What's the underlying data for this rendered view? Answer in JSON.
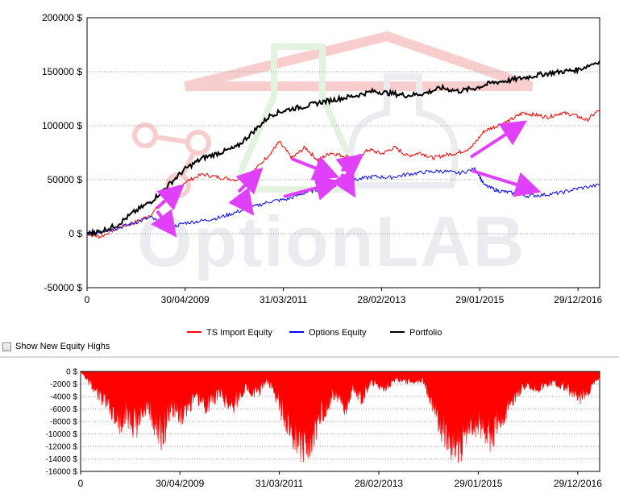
{
  "colors": {
    "ts_import": "#ff0000",
    "options": "#0000ff",
    "portfolio": "#000000",
    "drawdown": "#ff0000",
    "arrow": "#e040fb",
    "grid": "#a0a0a0",
    "watermark": "#f3a6a6",
    "watermark_gray": "#d9dde3",
    "watermark_green": "#cfe8c8"
  },
  "watermark": {
    "text": "OptionLAB"
  },
  "controls": {
    "show_new_equity_highs": {
      "label": "Show New Equity Highs",
      "checked": false
    }
  },
  "chart_data": [
    {
      "type": "line",
      "x_type": "date",
      "xlim": [
        "2007-06-01",
        "2017-06-01"
      ],
      "ylim": [
        -50000,
        200000
      ],
      "y_ticks": [
        {
          "value": -50000,
          "label": "-50000 $"
        },
        {
          "value": 0,
          "label": "0 $"
        },
        {
          "value": 50000,
          "label": "50000 $"
        },
        {
          "value": 100000,
          "label": "100000 $"
        },
        {
          "value": 150000,
          "label": "150000 $"
        },
        {
          "value": 200000,
          "label": "200000 $"
        }
      ],
      "x_ticks": [
        {
          "date": "2007-06-01",
          "label": "0"
        },
        {
          "date": "2009-04-30",
          "label": "30/04/2009"
        },
        {
          "date": "2011-03-31",
          "label": "31/03/2011"
        },
        {
          "date": "2013-02-28",
          "label": "28/02/2013"
        },
        {
          "date": "2015-01-29",
          "label": "29/01/2015"
        },
        {
          "date": "2016-12-29",
          "label": "29/12/2016"
        }
      ],
      "grid": "horizontal dotted",
      "legend_position": "bottom",
      "series": [
        {
          "name": "TS Import Equity",
          "color": "#ff0000",
          "x": [
            "2007-06-01",
            "2007-09-01",
            "2008-01-01",
            "2008-05-01",
            "2008-09-01",
            "2009-01-01",
            "2009-05-01",
            "2009-09-01",
            "2010-01-01",
            "2010-05-01",
            "2010-09-01",
            "2011-01-01",
            "2011-03-01",
            "2011-06-01",
            "2011-09-01",
            "2011-12-01",
            "2012-03-01",
            "2012-06-01",
            "2012-09-01",
            "2012-12-01",
            "2013-03-01",
            "2013-06-01",
            "2013-09-01",
            "2013-12-01",
            "2014-03-01",
            "2014-06-01",
            "2014-09-01",
            "2014-12-01",
            "2015-03-01",
            "2015-06-01",
            "2015-09-01",
            "2015-12-01",
            "2016-03-01",
            "2016-06-01",
            "2016-09-01",
            "2016-12-01",
            "2017-03-01",
            "2017-06-01"
          ],
          "y": [
            0,
            -3000,
            5000,
            10000,
            18000,
            35000,
            48000,
            55000,
            52000,
            50000,
            58000,
            75000,
            85000,
            70000,
            80000,
            68000,
            75000,
            72000,
            70000,
            78000,
            74000,
            80000,
            72000,
            75000,
            70000,
            73000,
            75000,
            80000,
            95000,
            100000,
            105000,
            112000,
            110000,
            108000,
            112000,
            110000,
            105000,
            115000
          ]
        },
        {
          "name": "Options Equity",
          "color": "#0000ff",
          "x": [
            "2007-06-01",
            "2007-09-01",
            "2008-01-01",
            "2008-05-01",
            "2008-09-01",
            "2009-01-01",
            "2009-05-01",
            "2009-09-01",
            "2010-01-01",
            "2010-05-01",
            "2010-09-01",
            "2011-01-01",
            "2011-05-01",
            "2011-09-01",
            "2012-01-01",
            "2012-05-01",
            "2012-09-01",
            "2013-01-01",
            "2013-05-01",
            "2013-09-01",
            "2014-01-01",
            "2014-05-01",
            "2014-09-01",
            "2015-01-01",
            "2015-03-01",
            "2015-06-01",
            "2015-09-01",
            "2016-01-01",
            "2016-05-01",
            "2016-09-01",
            "2017-01-01",
            "2017-06-01"
          ],
          "y": [
            0,
            2000,
            5000,
            10000,
            15000,
            5000,
            10000,
            12000,
            15000,
            20000,
            25000,
            30000,
            32000,
            38000,
            42000,
            46000,
            50000,
            53000,
            52000,
            55000,
            57000,
            58000,
            56000,
            60000,
            45000,
            40000,
            38000,
            35000,
            36000,
            38000,
            42000,
            45000
          ]
        },
        {
          "name": "Portfolio",
          "color": "#000000",
          "x": [
            "2007-06-01",
            "2007-09-01",
            "2008-01-01",
            "2008-05-01",
            "2008-09-01",
            "2009-01-01",
            "2009-05-01",
            "2009-09-01",
            "2010-01-01",
            "2010-05-01",
            "2010-09-01",
            "2011-01-01",
            "2011-05-01",
            "2011-09-01",
            "2012-01-01",
            "2012-05-01",
            "2012-09-01",
            "2013-01-01",
            "2013-05-01",
            "2013-09-01",
            "2014-01-01",
            "2014-05-01",
            "2014-09-01",
            "2015-01-01",
            "2015-05-01",
            "2015-09-01",
            "2016-01-01",
            "2016-05-01",
            "2016-09-01",
            "2017-01-01",
            "2017-06-01"
          ],
          "y": [
            0,
            2000,
            8000,
            20000,
            30000,
            45000,
            60000,
            70000,
            75000,
            80000,
            95000,
            110000,
            115000,
            118000,
            122000,
            125000,
            128000,
            132000,
            130000,
            128000,
            130000,
            135000,
            132000,
            135000,
            140000,
            142000,
            145000,
            148000,
            150000,
            152000,
            160000
          ]
        }
      ]
    },
    {
      "type": "area",
      "name": "drawdown",
      "x_type": "date",
      "xlim": [
        "2007-06-01",
        "2017-06-01"
      ],
      "ylim": [
        -16000,
        0
      ],
      "y_ticks": [
        {
          "value": 0,
          "label": "0 $"
        },
        {
          "value": -2000,
          "label": "-2000 $"
        },
        {
          "value": -4000,
          "label": "-4000 $"
        },
        {
          "value": -6000,
          "label": "-6000 $"
        },
        {
          "value": -8000,
          "label": "-8000 $"
        },
        {
          "value": -10000,
          "label": "-10000 $"
        },
        {
          "value": -12000,
          "label": "-12000 $"
        },
        {
          "value": -14000,
          "label": "-14000 $"
        },
        {
          "value": -16000,
          "label": "-16000 $"
        }
      ],
      "x_ticks": [
        {
          "date": "2007-06-01",
          "label": "0"
        },
        {
          "date": "2009-04-30",
          "label": "30/04/2009"
        },
        {
          "date": "2011-03-31",
          "label": "31/03/2011"
        },
        {
          "date": "2013-02-28",
          "label": "28/02/2013"
        },
        {
          "date": "2015-01-29",
          "label": "29/01/2015"
        },
        {
          "date": "2016-12-29",
          "label": "29/12/2016"
        }
      ],
      "grid": "horizontal dotted",
      "color": "#ff0000",
      "x": [
        "2007-06-01",
        "2007-08-01",
        "2007-10-01",
        "2008-01-01",
        "2008-03-01",
        "2008-05-01",
        "2008-07-01",
        "2008-09-01",
        "2008-11-01",
        "2009-01-01",
        "2009-03-01",
        "2009-05-01",
        "2009-08-01",
        "2009-11-01",
        "2010-02-01",
        "2010-05-01",
        "2010-08-01",
        "2010-11-01",
        "2011-01-01",
        "2011-03-01",
        "2011-05-01",
        "2011-07-01",
        "2011-09-01",
        "2011-11-01",
        "2012-01-01",
        "2012-03-01",
        "2012-05-01",
        "2012-07-01",
        "2012-09-01",
        "2012-11-01",
        "2013-01-01",
        "2013-04-01",
        "2013-07-01",
        "2013-10-01",
        "2014-01-01",
        "2014-03-01",
        "2014-05-01",
        "2014-07-01",
        "2014-09-01",
        "2014-11-01",
        "2015-01-01",
        "2015-03-01",
        "2015-05-01",
        "2015-07-01",
        "2015-09-01",
        "2015-11-01",
        "2016-01-01",
        "2016-04-01",
        "2016-07-01",
        "2016-10-01",
        "2017-01-01",
        "2017-03-01",
        "2017-06-01"
      ],
      "y": [
        0,
        -2000,
        -4000,
        -7000,
        -9000,
        -8000,
        -10500,
        -7000,
        -9000,
        -11500,
        -6000,
        -8000,
        -5000,
        -6000,
        -4000,
        -6500,
        -3000,
        -4000,
        -1500,
        -4000,
        -8000,
        -11000,
        -13000,
        -12000,
        -9000,
        -6000,
        -4000,
        -7000,
        -3000,
        -5000,
        -2000,
        -3000,
        -1500,
        -2000,
        -1500,
        -5000,
        -9000,
        -12500,
        -14000,
        -11000,
        -9000,
        -10000,
        -12000,
        -9000,
        -6000,
        -4000,
        -2500,
        -3000,
        -2000,
        -3000,
        -5000,
        -4000,
        -1000
      ]
    }
  ]
}
